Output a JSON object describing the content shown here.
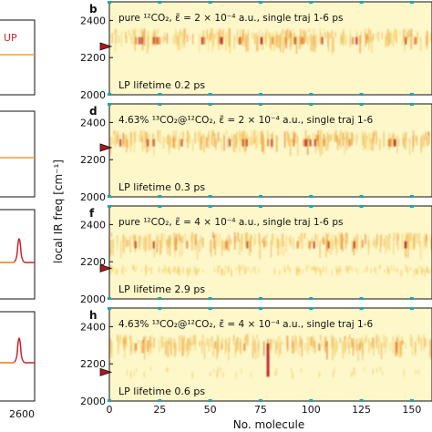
{
  "figure": {
    "ylabel": "local IR freq [cm⁻¹]",
    "xlabel": "No. molecule",
    "left_column": {
      "panels": [
        {
          "label": "UP"
        },
        {
          "label": ""
        },
        {
          "label": ""
        },
        {
          "label": ""
        }
      ],
      "xticklabel": "2600"
    },
    "colors": {
      "background": "#fdf7c9",
      "heat_low": "#f3cf6a",
      "heat_mid": "#e6782a",
      "heat_high": "#b0171e",
      "tick_marker": "#1aa7b5",
      "arrow_fill": "#b0171e",
      "spectrum_flat": "#f0a030",
      "spectrum_peak": "#cc1f2a",
      "up_label": "#d8262f"
    }
  },
  "chart_data": [
    {
      "type": "heatmap",
      "panel": "b",
      "title": "pure ¹²CO₂, ε̃ = 2 × 10⁻⁴ a.u., single traj 1-6 ps",
      "annotation": "LP lifetime 0.2 ps",
      "xlim": [
        0,
        160
      ],
      "ylim": [
        2000,
        2500
      ],
      "yticks": [
        2000,
        2200,
        2400
      ],
      "xticks": [
        0,
        25,
        50,
        75,
        100,
        125,
        150
      ],
      "arrow_freq": 2260,
      "band_center": 2330
    },
    {
      "type": "heatmap",
      "panel": "d",
      "title": "4.63% ¹³CO₂@¹²CO₂, ε̃ = 2 × 10⁻⁴ a.u., single traj 1-6",
      "annotation": "LP lifetime 0.3 ps",
      "xlim": [
        0,
        160
      ],
      "ylim": [
        2000,
        2500
      ],
      "yticks": [
        2000,
        2200,
        2400
      ],
      "xticks": [
        0,
        25,
        50,
        75,
        100,
        125,
        150
      ],
      "arrow_freq": 2265,
      "band_center": 2330
    },
    {
      "type": "heatmap",
      "panel": "f",
      "title": "pure ¹²CO₂, ε̃ = 4 × 10⁻⁴ a.u., single traj 1-6 ps",
      "annotation": "LP lifetime 2.9 ps",
      "xlim": [
        0,
        160
      ],
      "ylim": [
        2000,
        2500
      ],
      "yticks": [
        2000,
        2200,
        2400
      ],
      "xticks": [
        0,
        25,
        50,
        75,
        100,
        125,
        150
      ],
      "arrow_freq": 2165,
      "band_center": 2330
    },
    {
      "type": "heatmap",
      "panel": "h",
      "title": "4.63% ¹³CO₂@¹²CO₂, ε̃ = 4 × 10⁻⁴ a.u., single traj 1-6",
      "annotation": "LP lifetime 0.6 ps",
      "xlim": [
        0,
        160
      ],
      "ylim": [
        2000,
        2500
      ],
      "yticks": [
        2000,
        2200,
        2400
      ],
      "xticks": [
        0,
        25,
        50,
        75,
        100,
        125,
        150
      ],
      "arrow_freq": 2155,
      "band_center": 2330
    }
  ]
}
